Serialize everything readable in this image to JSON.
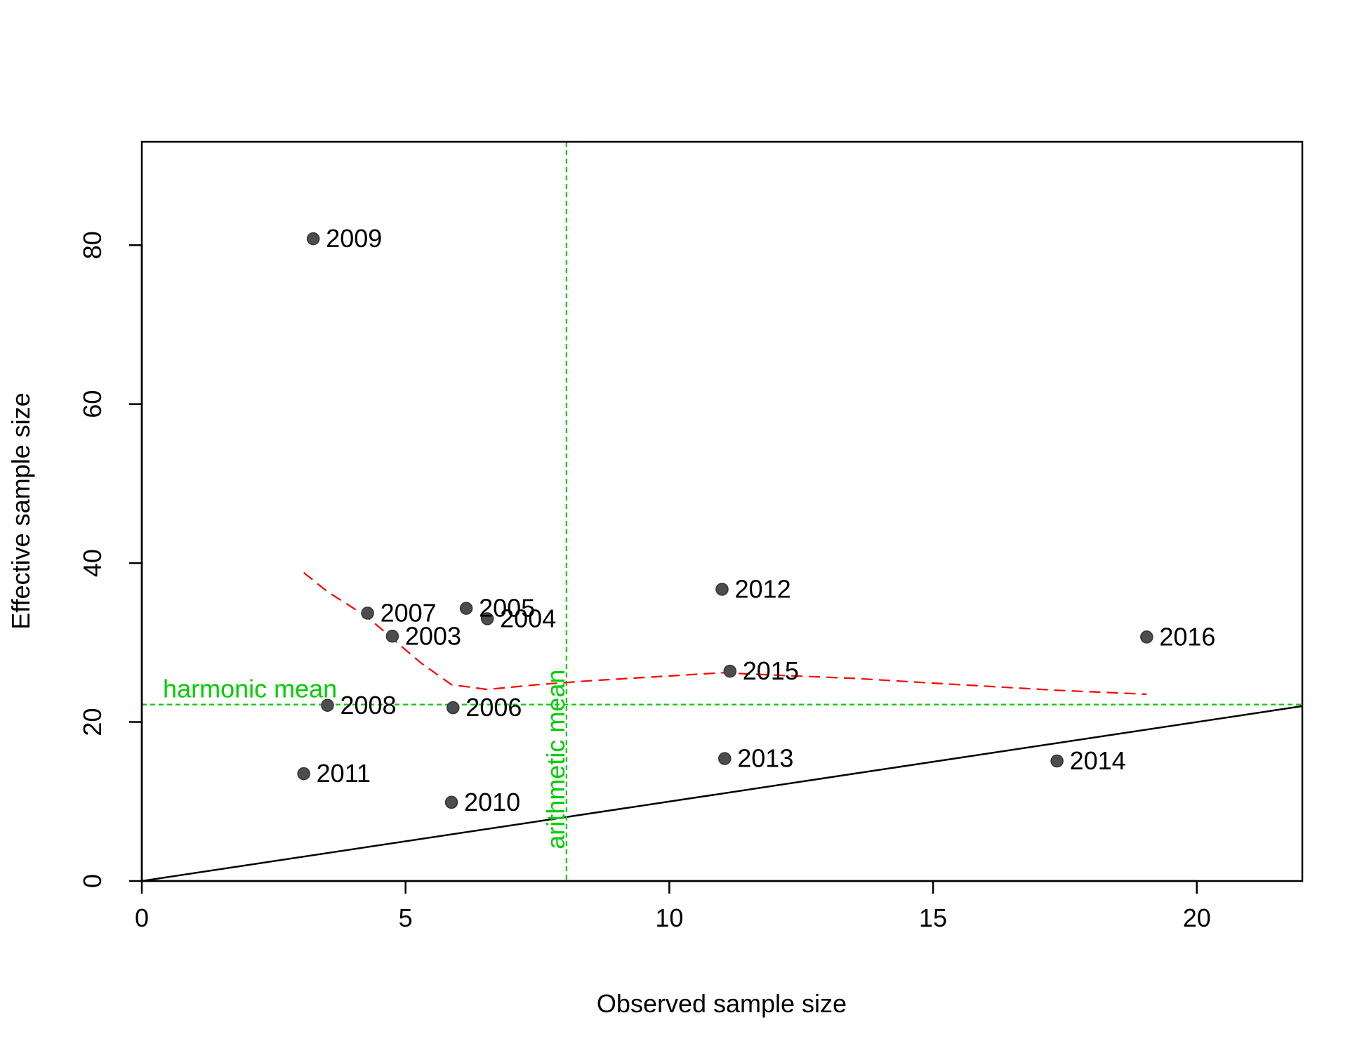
{
  "chart_data": {
    "type": "scatter",
    "title": "",
    "xlabel": "Observed sample size",
    "ylabel": "Effective sample size",
    "xlim": [
      0,
      22
    ],
    "ylim": [
      0,
      93
    ],
    "x_ticks": [
      0,
      5,
      10,
      15,
      20
    ],
    "y_ticks": [
      0,
      20,
      40,
      60,
      80
    ],
    "grid": false,
    "points": [
      {
        "label": "2003",
        "x": 4.75,
        "y": 30.8
      },
      {
        "label": "2004",
        "x": 6.55,
        "y": 33.0
      },
      {
        "label": "2005",
        "x": 6.15,
        "y": 34.3
      },
      {
        "label": "2006",
        "x": 5.9,
        "y": 21.8
      },
      {
        "label": "2007",
        "x": 4.28,
        "y": 33.7
      },
      {
        "label": "2008",
        "x": 3.52,
        "y": 22.1
      },
      {
        "label": "2009",
        "x": 3.25,
        "y": 80.8
      },
      {
        "label": "2010",
        "x": 5.87,
        "y": 9.9
      },
      {
        "label": "2011",
        "x": 3.07,
        "y": 13.5
      },
      {
        "label": "2012",
        "x": 11.0,
        "y": 36.7
      },
      {
        "label": "2013",
        "x": 11.05,
        "y": 15.4
      },
      {
        "label": "2014",
        "x": 17.35,
        "y": 15.1
      },
      {
        "label": "2015",
        "x": 11.15,
        "y": 26.4
      },
      {
        "label": "2016",
        "x": 19.05,
        "y": 30.7
      }
    ],
    "identity_line": {
      "from": [
        0,
        0
      ],
      "to": [
        22,
        22
      ]
    },
    "smoother": {
      "style": "dashed",
      "x": [
        3.07,
        3.52,
        4.28,
        4.75,
        5.3,
        5.87,
        6.55,
        7.5,
        8.5,
        10.0,
        11.0,
        12.0,
        13.5,
        15.0,
        17.35,
        19.05
      ],
      "y": [
        38.8,
        36.4,
        33.2,
        30.5,
        27.4,
        24.7,
        24.1,
        24.7,
        25.2,
        25.8,
        26.2,
        25.9,
        25.5,
        24.9,
        24.0,
        23.5
      ]
    },
    "harmonic_mean": {
      "label": "harmonic mean",
      "value": 22.2
    },
    "arithmetic_mean": {
      "label": "arithmetic mean",
      "value": 8.05
    },
    "colors": {
      "points": "#4d4d4d",
      "identity_line": "#000000",
      "smoother": "#ff0000",
      "means": "#00cd00"
    }
  }
}
